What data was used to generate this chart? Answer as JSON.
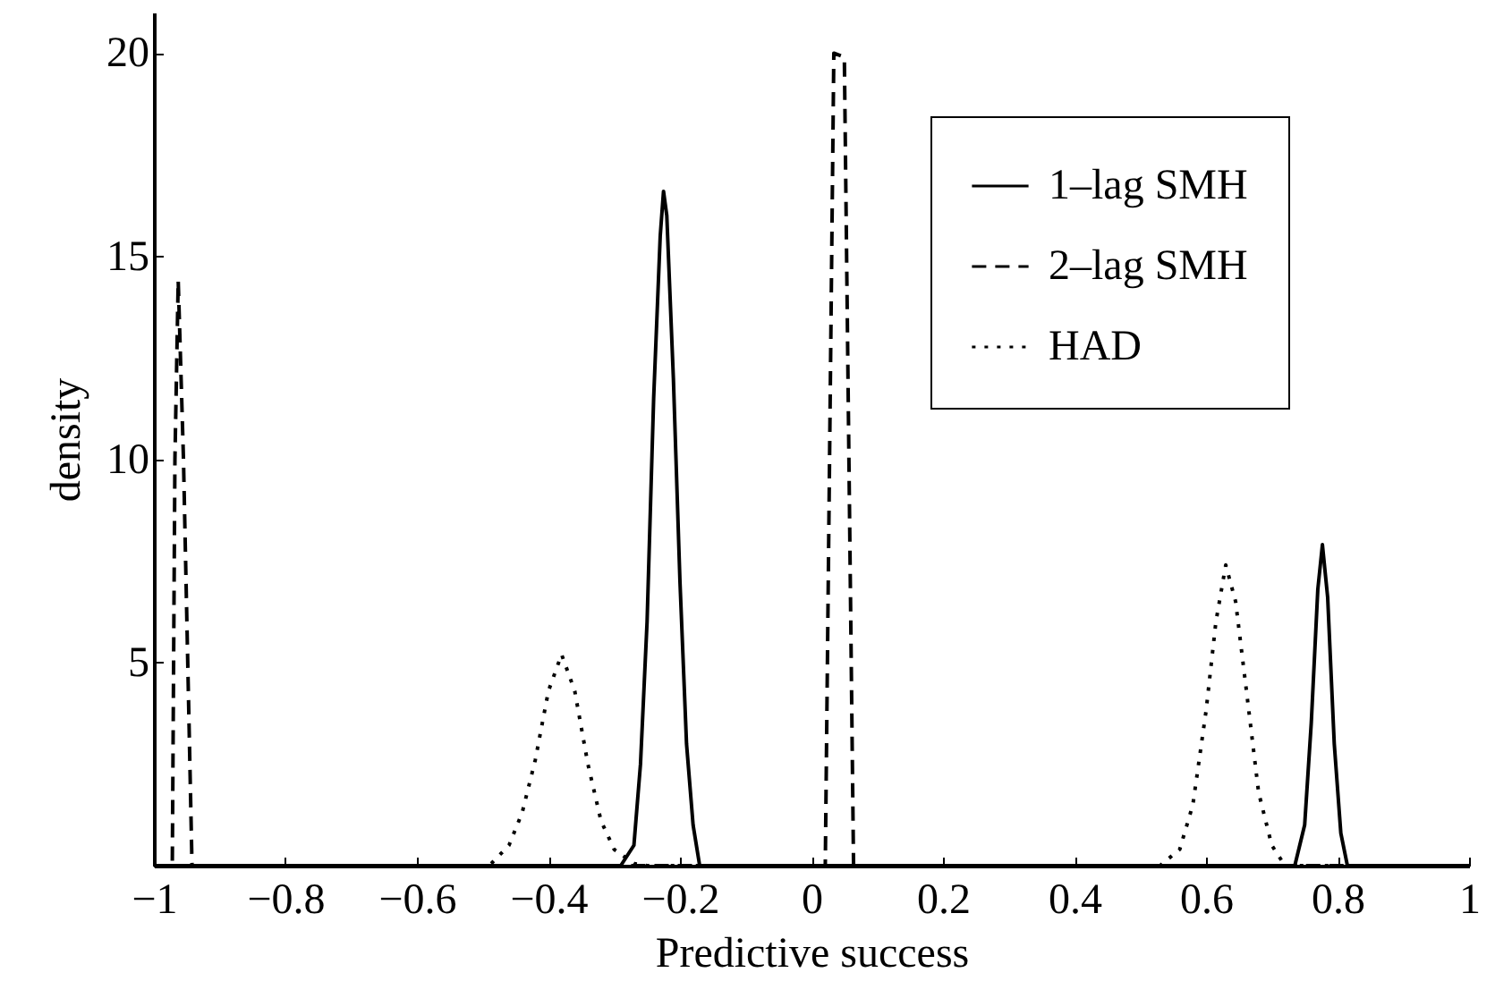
{
  "chart_data": {
    "type": "line",
    "xlabel": "Predictive success",
    "ylabel": "density",
    "xlim": [
      -1,
      1
    ],
    "ylim": [
      0,
      21
    ],
    "xticks": [
      {
        "value": -1,
        "label": "−1"
      },
      {
        "value": -0.8,
        "label": "−0.8"
      },
      {
        "value": -0.6,
        "label": "−0.6"
      },
      {
        "value": -0.4,
        "label": "−0.4"
      },
      {
        "value": -0.2,
        "label": "−0.2"
      },
      0,
      0.2,
      0.4,
      0.6,
      0.8,
      1
    ],
    "yticks": [
      5,
      10,
      15,
      20
    ],
    "grid": false,
    "legend": "top right",
    "marker": "none",
    "series": [
      {
        "name": "1–lag SMH",
        "color": "#000000",
        "line_style": "solid",
        "x": [
          -1,
          -0.29,
          -0.27,
          -0.26,
          -0.25,
          -0.24,
          -0.23,
          -0.225,
          -0.22,
          -0.21,
          -0.2,
          -0.19,
          -0.18,
          -0.17,
          0.735,
          0.75,
          0.76,
          0.77,
          0.777,
          0.785,
          0.795,
          0.805,
          0.815,
          1
        ],
        "values": [
          0,
          0,
          0.5,
          2.5,
          6,
          11.5,
          15.5,
          16.6,
          16,
          12,
          7,
          3,
          1,
          0,
          0,
          1,
          3.5,
          6.8,
          7.9,
          6.6,
          3,
          0.8,
          0,
          0
        ]
      },
      {
        "name": "2–lag SMH",
        "color": "#000000",
        "line_style": "dashed",
        "x": [
          -1,
          -0.972,
          -0.968,
          -0.963,
          -0.955,
          -0.942,
          0.021,
          0.034,
          0.05,
          0.064,
          1
        ],
        "values": [
          0,
          0,
          10,
          14.4,
          10,
          0,
          0,
          20,
          19.9,
          0,
          0
        ]
      },
      {
        "name": "HAD",
        "color": "#000000",
        "line_style": "dotted",
        "x": [
          -1,
          -0.49,
          -0.46,
          -0.44,
          -0.42,
          -0.4,
          -0.38,
          -0.36,
          -0.34,
          -0.32,
          -0.3,
          -0.27,
          -0.25,
          0.53,
          0.56,
          0.58,
          0.6,
          0.615,
          0.63,
          0.645,
          0.66,
          0.68,
          0.7,
          0.72,
          1
        ],
        "values": [
          0,
          0,
          0.5,
          1.3,
          2.6,
          4.3,
          5.2,
          4.3,
          2.5,
          1.1,
          0.4,
          0.05,
          0,
          0,
          0.4,
          1.5,
          3.8,
          6,
          7.4,
          6.5,
          4.5,
          1.8,
          0.5,
          0,
          0
        ]
      }
    ]
  }
}
